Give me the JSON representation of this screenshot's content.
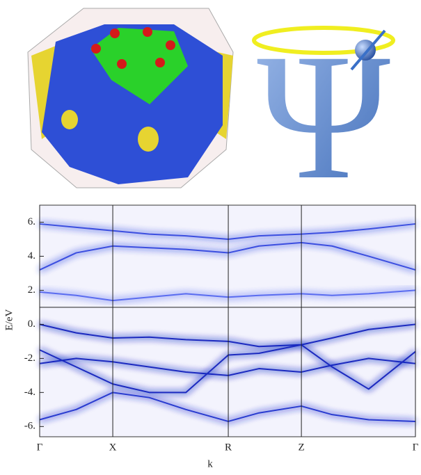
{
  "logo_symbol": "Ψ",
  "chart_data": {
    "type": "line",
    "xlabel": "k",
    "ylabel": "E/eV",
    "xlim": [
      0,
      5.14
    ],
    "ylim": [
      -6.6,
      7.0
    ],
    "xticks": [
      {
        "value": 0,
        "label": "Γ"
      },
      {
        "value": 1,
        "label": "X"
      },
      {
        "value": 2.58,
        "label": "R"
      },
      {
        "value": 3.58,
        "label": "Z"
      },
      {
        "value": 5.14,
        "label": "Γ"
      }
    ],
    "yticks": [
      {
        "value": 6,
        "label": "6."
      },
      {
        "value": 4,
        "label": "4."
      },
      {
        "value": 2,
        "label": "2."
      },
      {
        "value": 0,
        "label": "0."
      },
      {
        "value": -2,
        "label": "-2."
      },
      {
        "value": -4,
        "label": "-4."
      },
      {
        "value": -6,
        "label": "-6."
      }
    ],
    "xgrid": true,
    "hline": 1,
    "x": [
      0,
      0.5,
      1,
      1.5,
      2,
      2.58,
      3,
      3.58,
      4,
      4.5,
      5.14
    ],
    "series": [
      {
        "color": "#3a4fe0",
        "values": [
          5.9,
          5.7,
          5.5,
          5.3,
          5.2,
          5.0,
          5.2,
          5.3,
          5.4,
          5.6,
          5.9
        ]
      },
      {
        "color": "#3a4fe0",
        "values": [
          3.2,
          4.2,
          4.6,
          4.5,
          4.4,
          4.2,
          4.6,
          4.8,
          4.6,
          4.0,
          3.2
        ]
      },
      {
        "color": "#5a6cf0",
        "values": [
          1.9,
          1.7,
          1.4,
          1.6,
          1.8,
          1.6,
          1.7,
          1.8,
          1.7,
          1.8,
          2.0
        ]
      },
      {
        "color": "#1a2bc0",
        "values": [
          0,
          -0.5,
          -0.8,
          -0.75,
          -0.9,
          -1.0,
          -1.3,
          -1.2,
          -0.8,
          -0.3,
          0
        ]
      },
      {
        "color": "#1a2bc0",
        "values": [
          -2.3,
          -2.0,
          -2.2,
          -2.5,
          -2.8,
          -3.0,
          -2.6,
          -2.8,
          -2.4,
          -2.0,
          -2.3
        ]
      },
      {
        "color": "#1a2bc0",
        "values": [
          -1.5,
          -2.5,
          -3.5,
          -4.0,
          -4.0,
          -1.8,
          -1.7,
          -1.2,
          -2.5,
          -3.8,
          -1.6
        ]
      },
      {
        "color": "#2a3ad0",
        "values": [
          -5.6,
          -5.0,
          -4.0,
          -4.3,
          -5.0,
          -5.7,
          -5.2,
          -4.8,
          -5.3,
          -5.6,
          -5.7
        ]
      }
    ]
  }
}
